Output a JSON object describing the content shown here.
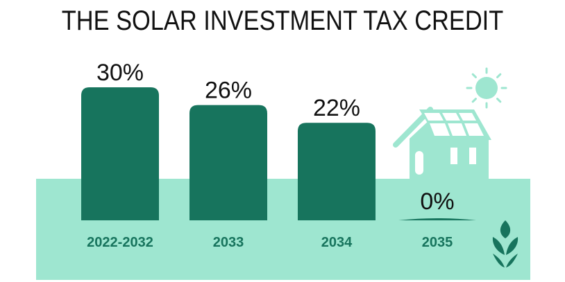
{
  "title": "THE SOLAR INVESTMENT TAX CREDIT",
  "colors": {
    "bar": "#17745d",
    "band": "#9ee6d0",
    "house": "#9ee6d0",
    "sun": "#9ee6d0",
    "text": "#111111",
    "category": "#17745d"
  },
  "icons": [
    "sun-icon",
    "house-icon",
    "solar-panel-icon",
    "leaf-logo-icon"
  ],
  "chart_data": {
    "type": "bar",
    "title": "THE SOLAR INVESTMENT TAX CREDIT",
    "categories": [
      "2022-2032",
      "2033",
      "2034",
      "2035"
    ],
    "values": [
      30,
      26,
      22,
      0
    ],
    "labels": [
      "30%",
      "26%",
      "22%",
      "0%"
    ],
    "unit": "%",
    "ylim": [
      0,
      30
    ],
    "grid": false,
    "legend": "none"
  }
}
